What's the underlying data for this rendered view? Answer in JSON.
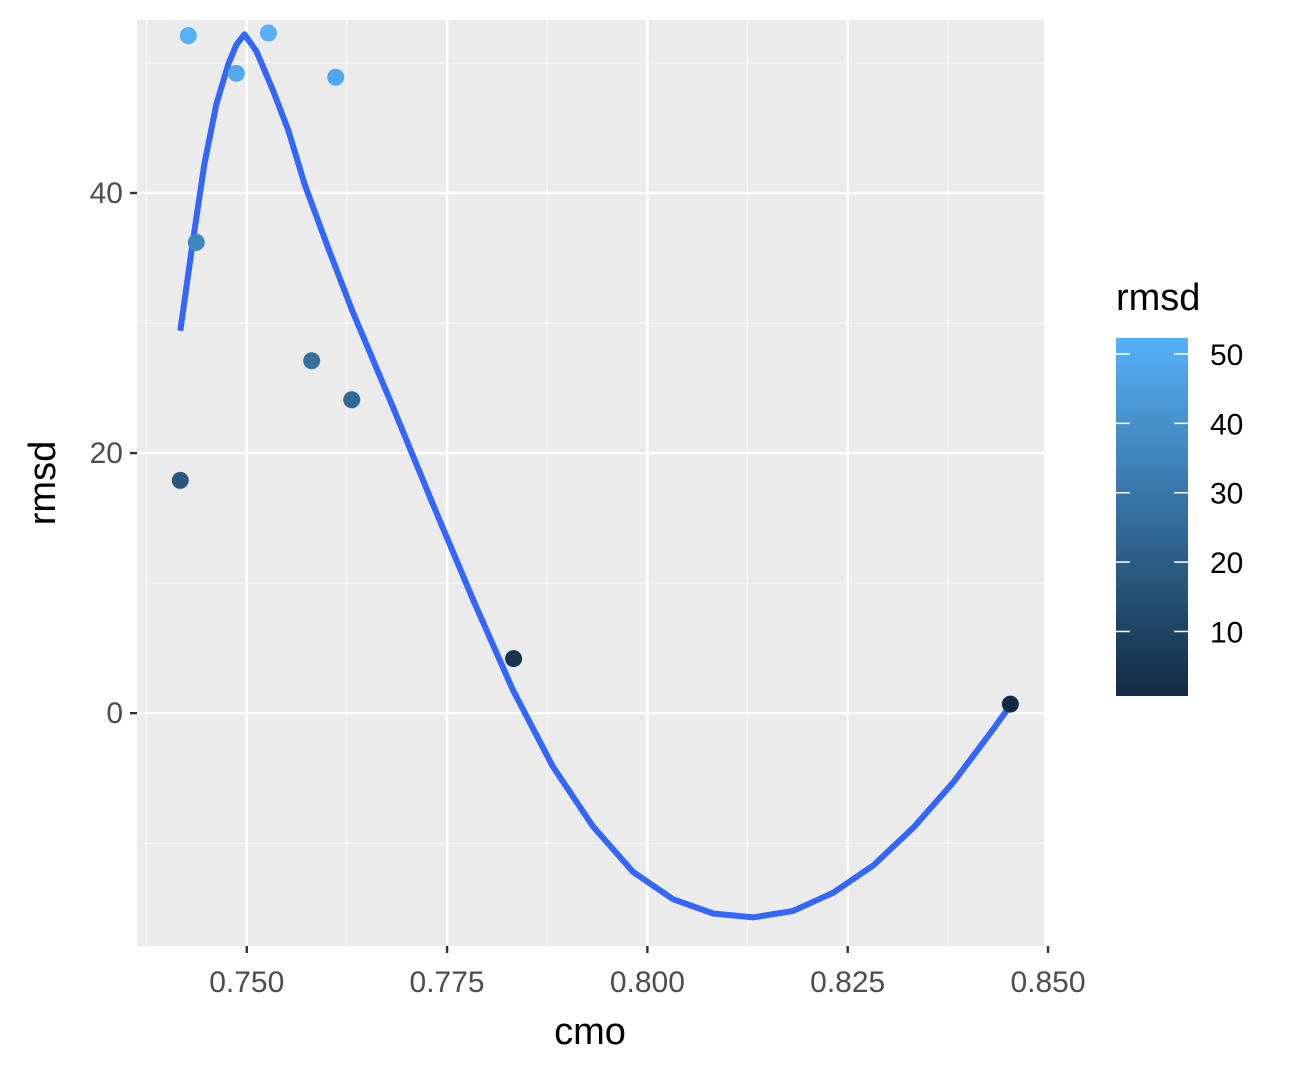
{
  "chart_data": {
    "type": "scatter",
    "title": "",
    "xlabel": "cmo",
    "ylabel": "rmsd",
    "xlim": [
      0.7363,
      0.8495
    ],
    "ylim": [
      -17.9,
      53.3
    ],
    "x_ticks": [
      0.75,
      0.775,
      0.8,
      0.825,
      0.85
    ],
    "x_tick_labels": [
      "0.750",
      "0.775",
      "0.800",
      "0.825",
      "0.850"
    ],
    "y_ticks": [
      0,
      20,
      40
    ],
    "y_tick_labels": [
      "0",
      "20",
      "40"
    ],
    "grid": true,
    "points": [
      {
        "x": 0.7417,
        "y": 17.9
      },
      {
        "x": 0.7427,
        "y": 52.1
      },
      {
        "x": 0.7437,
        "y": 36.2
      },
      {
        "x": 0.7487,
        "y": 49.2
      },
      {
        "x": 0.7527,
        "y": 52.3
      },
      {
        "x": 0.7581,
        "y": 27.1
      },
      {
        "x": 0.7611,
        "y": 48.9
      },
      {
        "x": 0.7631,
        "y": 24.1
      },
      {
        "x": 0.7833,
        "y": 4.2
      },
      {
        "x": 0.8453,
        "y": 0.7
      }
    ],
    "smooth_line": {
      "color": "#3366FF",
      "x": [
        0.7417,
        0.7432,
        0.7447,
        0.7462,
        0.7477,
        0.7487,
        0.7497,
        0.7512,
        0.7532,
        0.7552,
        0.7572,
        0.7602,
        0.7632,
        0.7682,
        0.7732,
        0.7782,
        0.7832,
        0.7882,
        0.7932,
        0.7982,
        0.8032,
        0.8082,
        0.8132,
        0.8182,
        0.8232,
        0.8282,
        0.8332,
        0.8382,
        0.8432,
        0.8453
      ],
      "y": [
        29.4,
        36.0,
        42.2,
        46.8,
        49.9,
        51.4,
        52.2,
        50.9,
        48.0,
        44.8,
        40.7,
        35.7,
        30.9,
        23.6,
        16.1,
        8.8,
        1.8,
        -4.1,
        -8.7,
        -12.2,
        -14.3,
        -15.4,
        -15.7,
        -15.2,
        -13.8,
        -11.7,
        -8.8,
        -5.3,
        -1.2,
        0.6
      ]
    },
    "color_scale": {
      "title": "rmsd",
      "min": 0.7,
      "max": 52.3,
      "low_color": "#132B43",
      "high_color": "#56B1F7",
      "breaks": [
        10,
        20,
        30,
        40,
        50
      ],
      "break_labels": [
        "10",
        "20",
        "30",
        "40",
        "50"
      ]
    },
    "colors": {
      "panel_bg": "#EBEBEB",
      "grid_major": "#FFFFFF",
      "grid_minor": "#F5F5F5"
    }
  }
}
